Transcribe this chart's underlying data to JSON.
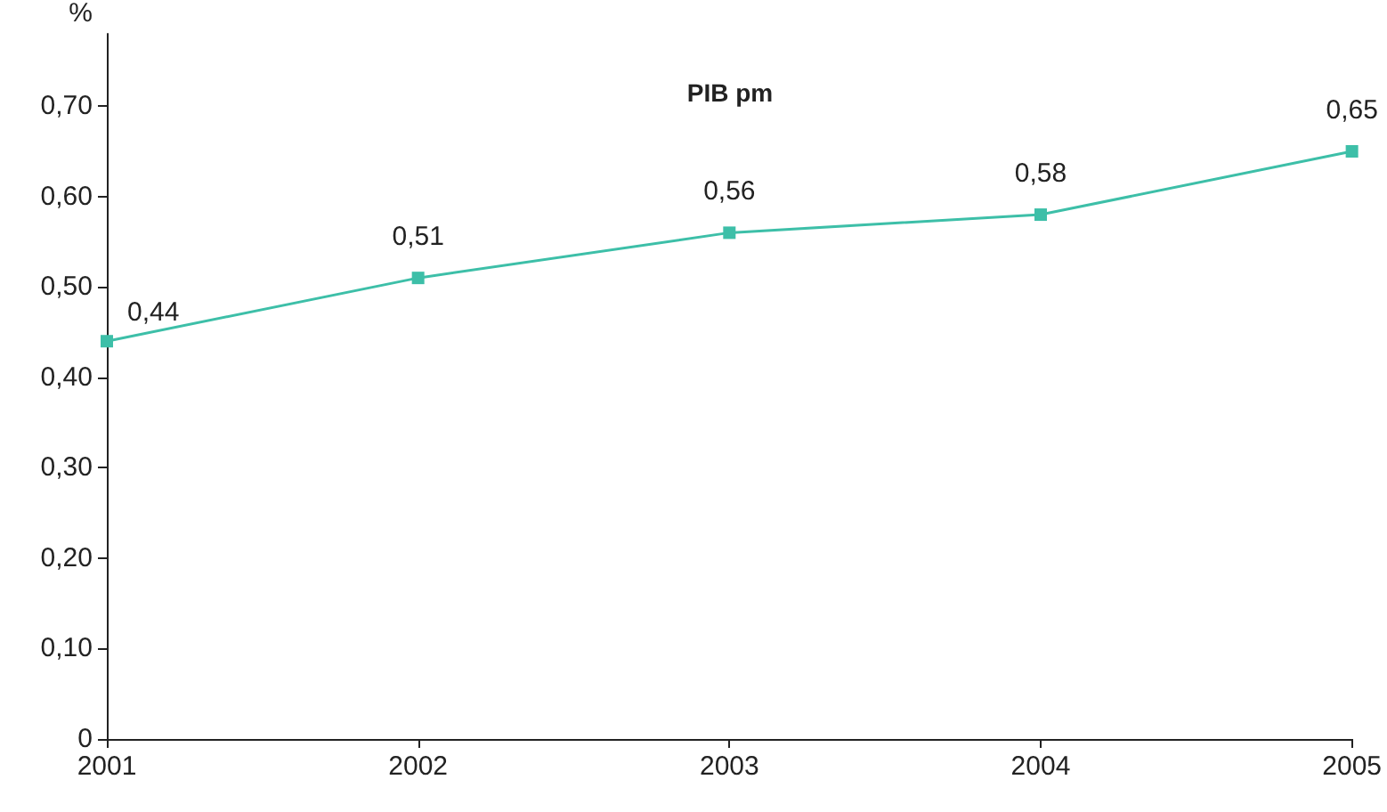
{
  "chart_data": {
    "type": "line",
    "title": "PIB pm",
    "ylabel": "%",
    "categories": [
      "2001",
      "2002",
      "2003",
      "2004",
      "2005"
    ],
    "series": [
      {
        "color": "#3dbfa8",
        "values": [
          0.44,
          0.51,
          0.56,
          0.58,
          0.65
        ],
        "value_labels": [
          "0,44",
          "0,51",
          "0,56",
          "0,58",
          "0,65"
        ]
      }
    ],
    "ylim": [
      0,
      0.78
    ],
    "yticks": [
      0,
      {
        "value": 0.1,
        "label": "0,10"
      },
      {
        "value": 0.2,
        "label": "0,20"
      },
      {
        "value": 0.3,
        "label": "0,30"
      },
      {
        "value": 0.4,
        "label": "0,40"
      },
      {
        "value": 0.5,
        "label": "0,50"
      },
      {
        "value": 0.6,
        "label": "0,60"
      },
      {
        "value": 0.7,
        "label": "0,70"
      }
    ],
    "grid": false,
    "marker": "square",
    "line_style": "solid"
  }
}
